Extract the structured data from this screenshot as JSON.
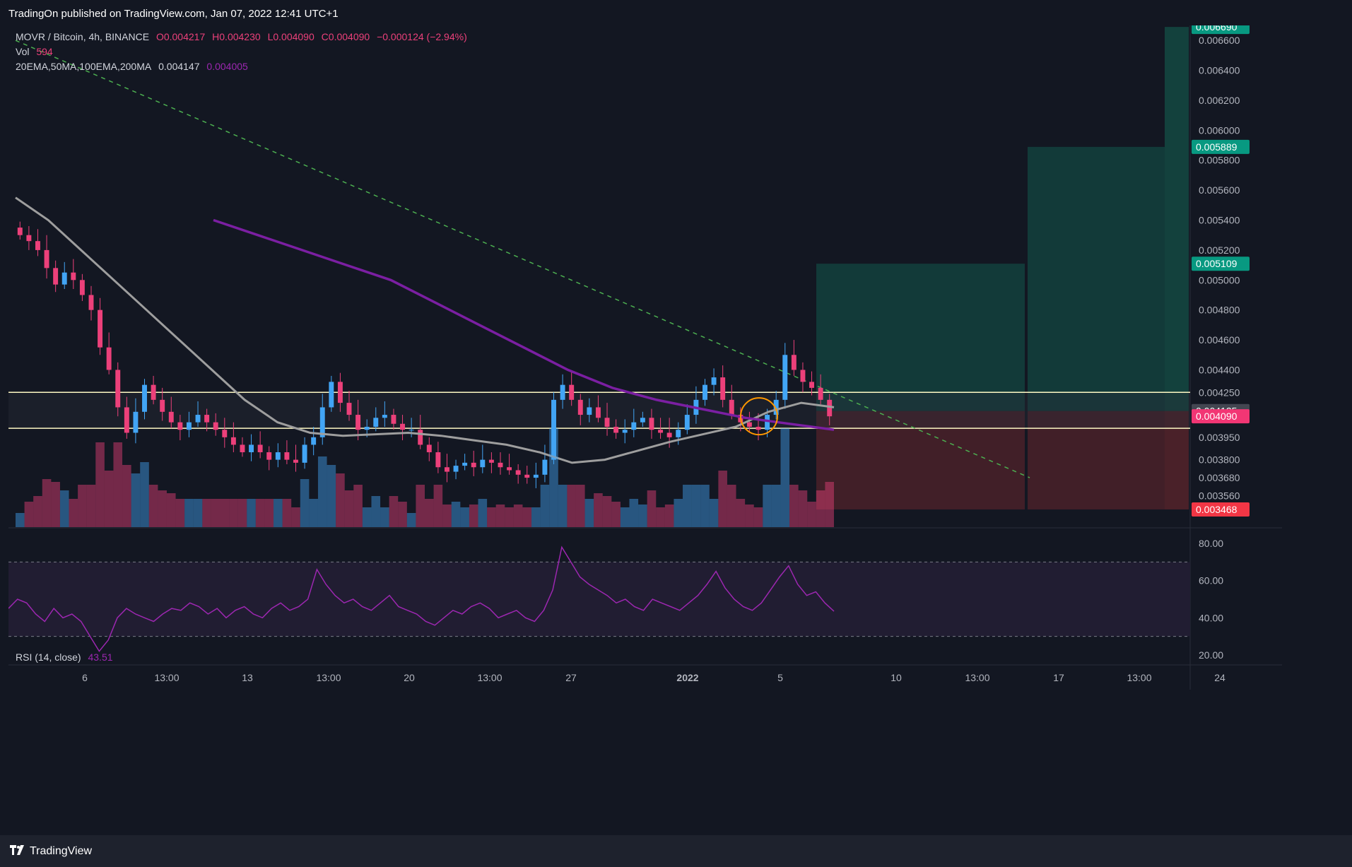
{
  "header": {
    "published": "TradingOn published on TradingView.com, Jan 07, 2022 12:41 UTC+1"
  },
  "legend": {
    "symbol": "MOVR / Bitcoin, 4h, BINANCE",
    "open_label": "O",
    "open": "0.004217",
    "high_label": "H",
    "high": "0.004230",
    "low_label": "L",
    "low": "0.004090",
    "close_label": "C",
    "close": "0.004090",
    "change": "−0.000124 (−2.94%)",
    "vol_label": "Vol",
    "vol": "594",
    "ma_label": "20EMA,50MA,100EMA,200MA",
    "ma_value_1": "0.004147",
    "ma_value_2": "0.004005"
  },
  "rsi_legend": {
    "label": "RSI (14, close)",
    "value": "43.51"
  },
  "footer": {
    "brand": "TradingView"
  },
  "colors": {
    "background": "#131722",
    "up": "#42a5f5",
    "down": "#ec407a",
    "ma_gray": "#9e9e9e",
    "ma_purple": "#7b1fa2",
    "trendline": "#4caf50",
    "level_line": "#fff9c4",
    "target_zone": "#13413d",
    "stop_zone": "#4a2129",
    "rsi_line": "#9c27b0",
    "rsi_band": "#211d32"
  },
  "chart_data": [
    {
      "type": "line",
      "title": "MOVR / Bitcoin, 4h, BINANCE",
      "x_ticks": [
        "6",
        "13:00",
        "13",
        "13:00",
        "20",
        "13:00",
        "27",
        "2022",
        "5",
        "10",
        "13:00",
        "17",
        "13:00",
        "24"
      ],
      "y_ticks": [
        0.00356,
        0.00368,
        0.0038,
        0.00395,
        0.00425,
        0.0044,
        0.0046,
        0.0048,
        0.005,
        0.0052,
        0.0054,
        0.0056,
        0.0058,
        0.006,
        0.0062,
        0.0064,
        0.0066
      ],
      "y_tick_labels": [
        "0.003560",
        "0.003680",
        "0.003800",
        "0.003950",
        "0.004250",
        "0.004400",
        "0.004600",
        "0.004800",
        "0.005000",
        "0.005200",
        "0.005400",
        "0.005600",
        "0.005800",
        "0.006000",
        "0.006200",
        "0.006400",
        "0.006600"
      ],
      "price_tags": [
        {
          "label": "0.006690",
          "value": 0.00669,
          "color": "#089981"
        },
        {
          "label": "0.005889",
          "value": 0.005889,
          "color": "#089981"
        },
        {
          "label": "0.005109",
          "value": 0.005109,
          "color": "#089981"
        },
        {
          "label": "0.004125",
          "value": 0.004125,
          "color": "#434651"
        },
        {
          "label": "0.004090",
          "value": 0.00409,
          "color": "#f23674"
        },
        {
          "label": "0.003468",
          "value": 0.003468,
          "color": "#f23645"
        }
      ],
      "levels": [
        0.00425,
        0.00401
      ],
      "targets": [
        0.005109,
        0.005889,
        0.00669
      ],
      "entry": 0.004125,
      "stop": 0.003468,
      "close_series": [
        0.0053,
        0.00526,
        0.0052,
        0.00508,
        0.00497,
        0.00505,
        0.005,
        0.0049,
        0.0048,
        0.00455,
        0.0044,
        0.00415,
        0.00398,
        0.00412,
        0.0043,
        0.0042,
        0.00412,
        0.00405,
        0.004,
        0.00405,
        0.0041,
        0.00405,
        0.004,
        0.00395,
        0.0039,
        0.00385,
        0.0039,
        0.00385,
        0.0038,
        0.00385,
        0.0038,
        0.00378,
        0.0039,
        0.00395,
        0.00415,
        0.00432,
        0.00418,
        0.0041,
        0.004,
        0.00402,
        0.00408,
        0.0041,
        0.00404,
        0.004,
        0.004,
        0.0039,
        0.00385,
        0.00375,
        0.00372,
        0.00376,
        0.00378,
        0.00375,
        0.0038,
        0.00378,
        0.00375,
        0.00373,
        0.0037,
        0.00368,
        0.0037,
        0.0038,
        0.0042,
        0.0043,
        0.0042,
        0.0041,
        0.00415,
        0.00408,
        0.00402,
        0.00398,
        0.004,
        0.00405,
        0.00408,
        0.004,
        0.00398,
        0.00395,
        0.004,
        0.0041,
        0.0042,
        0.0043,
        0.00435,
        0.0042,
        0.0041,
        0.00405,
        0.00402,
        0.004,
        0.0041,
        0.0042,
        0.0045,
        0.0044,
        0.00432,
        0.00428,
        0.0042,
        0.00409
      ],
      "ma_gray_series": [
        0.00555,
        0.0054,
        0.0052,
        0.005,
        0.0048,
        0.0046,
        0.0044,
        0.0042,
        0.00405,
        0.00398,
        0.00396,
        0.00397,
        0.00398,
        0.00396,
        0.00393,
        0.0039,
        0.00385,
        0.00378,
        0.0038,
        0.00386,
        0.00392,
        0.00397,
        0.00402,
        0.00412,
        0.00418,
        0.00415
      ],
      "ma_purple_series": [
        0.0054,
        0.0053,
        0.0052,
        0.0051,
        0.005,
        0.00485,
        0.0047,
        0.00455,
        0.0044,
        0.00428,
        0.0042,
        0.00414,
        0.00408,
        0.00404,
        0.004
      ],
      "volume_label": "Vol",
      "rsi": {
        "label": "RSI (14, close)",
        "y_ticks": [
          80,
          60,
          40,
          20
        ],
        "y_tick_labels": [
          "80.00",
          "60.00",
          "40.00",
          "20.00"
        ],
        "band": [
          70,
          30
        ],
        "values": [
          45,
          50,
          48,
          42,
          38,
          45,
          40,
          42,
          38,
          30,
          22,
          28,
          40,
          45,
          42,
          40,
          38,
          42,
          45,
          44,
          48,
          46,
          42,
          45,
          40,
          44,
          46,
          42,
          40,
          45,
          48,
          44,
          46,
          50,
          66,
          58,
          52,
          48,
          50,
          46,
          44,
          48,
          52,
          46,
          44,
          42,
          38,
          36,
          40,
          44,
          42,
          46,
          48,
          45,
          40,
          42,
          44,
          40,
          38,
          44,
          55,
          78,
          70,
          62,
          58,
          55,
          52,
          48,
          50,
          46,
          44,
          50,
          48,
          46,
          44,
          48,
          52,
          58,
          65,
          56,
          50,
          46,
          44,
          48,
          55,
          62,
          68,
          58,
          52,
          54,
          48,
          43.51
        ]
      }
    }
  ]
}
